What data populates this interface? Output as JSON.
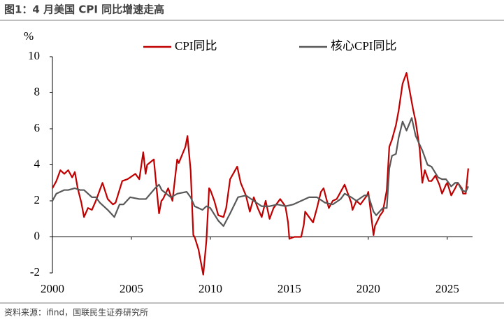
{
  "chart_data": {
    "type": "line",
    "title": "图1：4 月美国 CPI 同比增速走高",
    "y_label": "%",
    "source": "资料来源：ifind，国联民生证券研究所",
    "xlim": [
      2000,
      2026.6
    ],
    "xticks": [
      2000,
      2005,
      2010,
      2015,
      2020,
      2025
    ],
    "ylim": [
      -2,
      10
    ],
    "yticks": [
      -2,
      0,
      2,
      4,
      6,
      8,
      10
    ],
    "grid": false,
    "legend": "top",
    "series": [
      {
        "name": "CPI同比",
        "color": "#c00000",
        "x": [
          2000.0,
          2000.25,
          2000.5,
          2000.75,
          2001.0,
          2001.25,
          2001.42,
          2001.6,
          2001.83,
          2002.0,
          2002.25,
          2002.5,
          2002.75,
          2003.0,
          2003.17,
          2003.5,
          2003.83,
          2004.0,
          2004.42,
          2004.75,
          2004.92,
          2005.25,
          2005.5,
          2005.75,
          2005.9,
          2006.0,
          2006.42,
          2006.75,
          2006.9,
          2007.0,
          2007.33,
          2007.6,
          2007.9,
          2008.0,
          2008.42,
          2008.55,
          2008.75,
          2008.92,
          2009.0,
          2009.25,
          2009.55,
          2009.75,
          2009.92,
          2010.0,
          2010.25,
          2010.5,
          2010.83,
          2011.0,
          2011.25,
          2011.7,
          2011.92,
          2012.25,
          2012.5,
          2012.75,
          2013.0,
          2013.25,
          2013.5,
          2013.75,
          2014.0,
          2014.42,
          2014.75,
          2014.92,
          2015.0,
          2015.33,
          2015.75,
          2015.92,
          2016.0,
          2016.25,
          2016.5,
          2016.75,
          2017.0,
          2017.17,
          2017.5,
          2017.75,
          2018.0,
          2018.5,
          2018.75,
          2018.92,
          2019.0,
          2019.25,
          2019.5,
          2019.92,
          2020.0,
          2020.33,
          2020.42,
          2020.75,
          2020.92,
          2021.17,
          2021.33,
          2021.5,
          2021.75,
          2021.92,
          2022.17,
          2022.42,
          2022.58,
          2022.83,
          2023.0,
          2023.25,
          2023.42,
          2023.58,
          2023.83,
          2024.0,
          2024.25,
          2024.5,
          2024.67,
          2024.92,
          2025.0,
          2025.25,
          2025.5,
          2025.67,
          2025.92,
          2026.0,
          2026.17,
          2026.33
        ],
        "values": [
          2.7,
          3.1,
          3.7,
          3.5,
          3.7,
          3.3,
          3.6,
          2.7,
          1.9,
          1.1,
          1.6,
          1.5,
          2.0,
          2.6,
          3.0,
          2.1,
          1.8,
          1.9,
          3.1,
          3.2,
          3.3,
          3.5,
          3.2,
          4.7,
          3.5,
          4.0,
          4.3,
          1.3,
          2.0,
          2.1,
          2.7,
          2.0,
          4.3,
          4.1,
          5.0,
          5.6,
          3.7,
          0.1,
          0.0,
          -0.7,
          -2.1,
          -0.2,
          2.7,
          2.6,
          2.0,
          1.2,
          1.1,
          1.6,
          3.2,
          3.9,
          3.0,
          2.3,
          1.4,
          2.2,
          1.6,
          1.1,
          2.0,
          1.0,
          1.6,
          2.1,
          1.7,
          0.8,
          -0.1,
          0.0,
          0.0,
          0.7,
          1.4,
          1.1,
          0.8,
          1.6,
          2.5,
          2.7,
          1.6,
          2.0,
          2.1,
          2.9,
          2.3,
          1.9,
          1.5,
          2.0,
          1.8,
          2.3,
          2.5,
          0.1,
          0.6,
          1.2,
          1.4,
          2.6,
          5.0,
          5.4,
          6.2,
          7.0,
          8.5,
          9.1,
          8.3,
          7.1,
          6.4,
          4.9,
          3.0,
          3.7,
          3.1,
          3.1,
          3.4,
          2.9,
          2.4,
          2.9,
          3.0,
          2.3,
          2.7,
          3.0,
          2.7,
          2.4,
          2.4,
          3.8
        ]
      },
      {
        "name": "核心CPI同比",
        "color": "#595959",
        "x": [
          2000.0,
          2000.25,
          2000.5,
          2000.75,
          2001.0,
          2001.42,
          2001.75,
          2002.0,
          2002.5,
          2002.75,
          2003.0,
          2003.5,
          2003.92,
          2004.25,
          2004.5,
          2004.92,
          2005.5,
          2005.92,
          2006.5,
          2006.75,
          2006.92,
          2007.5,
          2007.92,
          2008.5,
          2008.75,
          2009.0,
          2009.5,
          2009.75,
          2010.0,
          2010.5,
          2010.83,
          2011.25,
          2011.75,
          2012.25,
          2012.75,
          2013.25,
          2013.75,
          2014.25,
          2014.75,
          2015.25,
          2015.75,
          2016.25,
          2016.75,
          2017.25,
          2017.75,
          2018.25,
          2018.5,
          2018.92,
          2019.25,
          2019.75,
          2020.0,
          2020.33,
          2020.5,
          2020.92,
          2021.17,
          2021.33,
          2021.5,
          2021.75,
          2021.92,
          2022.17,
          2022.42,
          2022.75,
          2023.0,
          2023.42,
          2023.75,
          2024.0,
          2024.42,
          2024.67,
          2024.92,
          2025.25,
          2025.5,
          2025.67,
          2025.92,
          2026.17,
          2026.33
        ],
        "values": [
          2.0,
          2.4,
          2.5,
          2.6,
          2.6,
          2.7,
          2.6,
          2.6,
          2.2,
          2.2,
          1.9,
          1.5,
          1.1,
          1.8,
          1.8,
          2.2,
          2.1,
          2.1,
          2.7,
          2.9,
          2.6,
          2.2,
          2.4,
          2.5,
          2.2,
          1.7,
          1.5,
          1.7,
          1.6,
          0.9,
          0.6,
          1.3,
          2.2,
          2.3,
          2.0,
          1.7,
          1.7,
          1.8,
          1.7,
          1.8,
          2.0,
          2.2,
          2.2,
          1.9,
          1.8,
          2.1,
          2.4,
          2.2,
          2.0,
          2.3,
          2.3,
          1.4,
          1.2,
          1.6,
          1.6,
          3.8,
          4.5,
          4.6,
          5.5,
          6.4,
          5.9,
          6.6,
          5.6,
          4.8,
          4.0,
          3.9,
          3.3,
          3.2,
          3.2,
          2.8,
          3.0,
          3.0,
          2.6,
          2.5,
          2.8
        ]
      }
    ]
  }
}
